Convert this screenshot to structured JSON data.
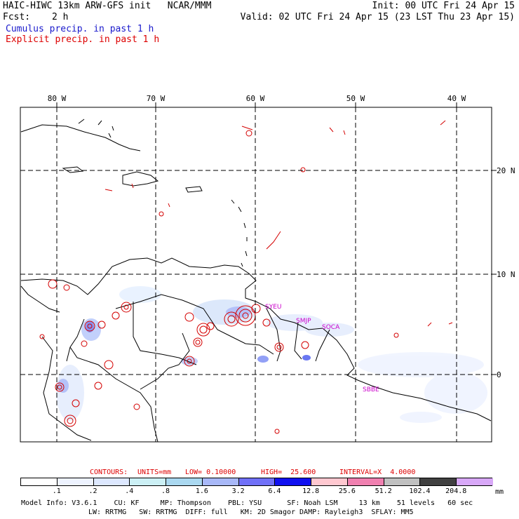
{
  "header": {
    "title_left": "HAIC-HIWC 13km ARW-GFS init   NCAR/MMM",
    "init": "Init: 00 UTC Fri 24 Apr 15",
    "fcst_label": "Fcst:",
    "fcst_value": "2 h",
    "valid": "Valid: 02 UTC Fri 24 Apr 15 (23 LST Thu 23 Apr 15)",
    "cumulus_label": "Cumulus precip. in past 1 h",
    "explicit_label": "Explicit precip. in past 1 h"
  },
  "map": {
    "lon_labels": [
      "80 W",
      "70 W",
      "60 W",
      "50 W",
      "40 W"
    ],
    "lat_labels": [
      "20 N",
      "10 N",
      "0"
    ],
    "stations": [
      "SYEU",
      "SMJP",
      "SOCA",
      "SBBE"
    ],
    "colors": {
      "grid": "#000000",
      "coast": "#000000",
      "explicit_contour": "#d40000",
      "station": "#cc00cc"
    }
  },
  "contours": {
    "contours_label": "CONTOURS:",
    "units": "UNITS=mm",
    "low": "LOW= 0.10000",
    "high": "HIGH=  25.600",
    "interval": "INTERVAL=X  4.0000"
  },
  "colorbar": {
    "unit": "mm",
    "ticks": [
      ".1",
      ".2",
      ".4",
      ".8",
      "1.6",
      "3.2",
      "6.4",
      "12.8",
      "25.6",
      "51.2",
      "102.4",
      "204.8"
    ],
    "colors": [
      "#ffffff",
      "#eef3ff",
      "#dde8ff",
      "#ccf0f5",
      "#aad8f0",
      "#a8b8f8",
      "#7070f8",
      "#1010f0",
      "#ffc8d0",
      "#f080b0",
      "#c0c0c0",
      "#404040",
      "#d8a8f8"
    ]
  },
  "footer": {
    "line1": "Model Info: V3.6.1    CU: KF     MP: Thompson    PBL: YSU      SF: Noah LSM     13 km    51 levels   60 sec",
    "line2": "LW: RRTMG   SW: RRTMG  DIFF: full   KM: 2D Smagor DAMP: Rayleigh3  SFLAY: MM5"
  }
}
